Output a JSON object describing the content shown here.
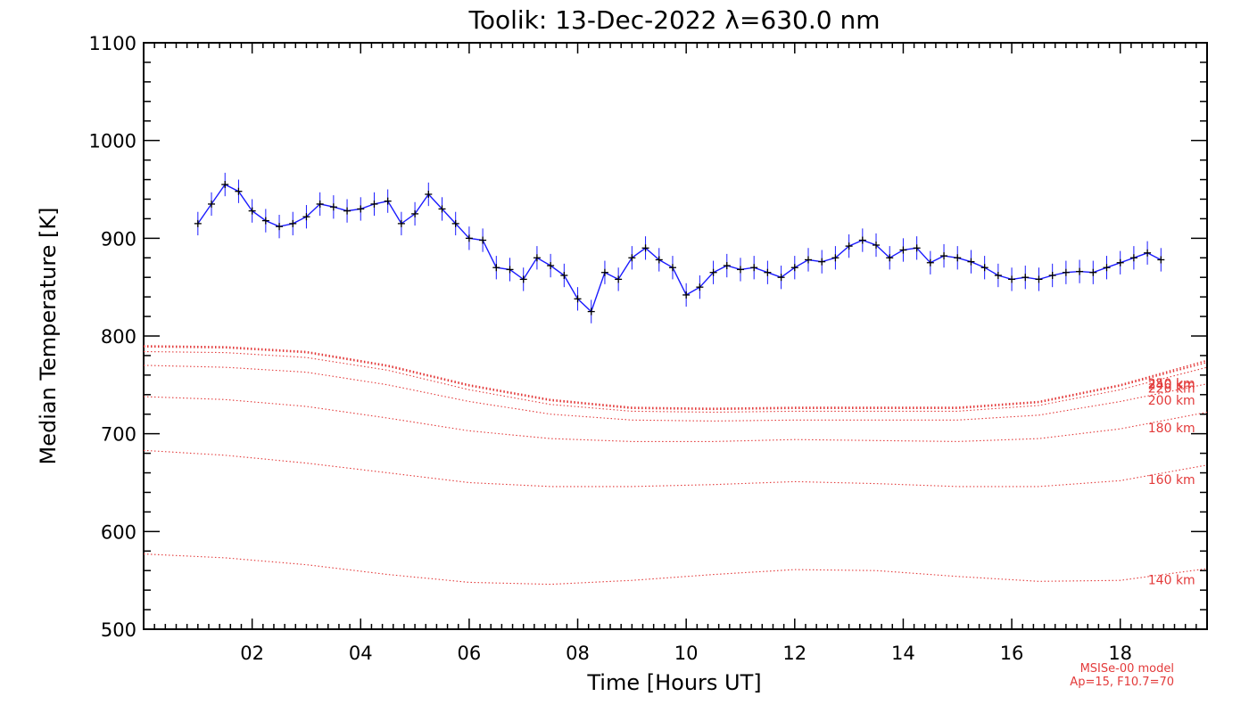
{
  "chart_data": {
    "type": "line",
    "title": "Toolik: 13-Dec-2022 λ=630.0 nm",
    "xlabel": "Time [Hours UT]",
    "ylabel": "Median Temperature [K]",
    "xlim": [
      0.0,
      19.6
    ],
    "ylim": [
      500,
      1100
    ],
    "xticks": [
      2,
      4,
      6,
      8,
      10,
      12,
      14,
      16,
      18
    ],
    "xtick_labels": [
      "02",
      "04",
      "06",
      "08",
      "10",
      "12",
      "14",
      "16",
      "18"
    ],
    "yticks": [
      500,
      600,
      700,
      800,
      900,
      1000,
      1100
    ],
    "ytick_labels": [
      "500",
      "600",
      "700",
      "800",
      "900",
      "1000",
      "1100"
    ],
    "measured": {
      "color": "#1a1aff",
      "marker_color": "#000000",
      "error_bar_K": 12,
      "x": [
        1.0,
        1.25,
        1.5,
        1.75,
        2.0,
        2.25,
        2.5,
        2.75,
        3.0,
        3.25,
        3.5,
        3.75,
        4.0,
        4.25,
        4.5,
        4.75,
        5.0,
        5.25,
        5.5,
        5.75,
        6.0,
        6.25,
        6.5,
        6.75,
        7.0,
        7.25,
        7.5,
        7.75,
        8.0,
        8.25,
        8.5,
        8.75,
        9.0,
        9.25,
        9.5,
        9.75,
        10.0,
        10.25,
        10.5,
        10.75,
        11.0,
        11.25,
        11.5,
        11.75,
        12.0,
        12.25,
        12.5,
        12.75,
        13.0,
        13.25,
        13.5,
        13.75,
        14.0,
        14.25,
        14.5,
        14.75,
        15.0,
        15.25,
        15.5,
        15.75,
        16.0,
        16.25,
        16.5,
        16.75,
        17.0,
        17.25,
        17.5,
        17.75,
        18.0,
        18.25,
        18.5,
        18.75
      ],
      "y": [
        915,
        935,
        955,
        948,
        928,
        918,
        912,
        915,
        922,
        935,
        932,
        928,
        930,
        935,
        938,
        915,
        925,
        945,
        930,
        915,
        900,
        898,
        870,
        868,
        858,
        880,
        872,
        862,
        838,
        825,
        865,
        858,
        880,
        890,
        878,
        870,
        842,
        850,
        865,
        872,
        868,
        870,
        865,
        860,
        870,
        878,
        876,
        880,
        892,
        898,
        893,
        880,
        888,
        890,
        875,
        882,
        880,
        876,
        870,
        862,
        858,
        860,
        858,
        862,
        865,
        866,
        865,
        870,
        875,
        880,
        885,
        878
      ]
    },
    "model_series": [
      {
        "name": "250 km",
        "label": "250 km",
        "y": [
          790,
          789,
          784,
          770,
          750,
          735,
          727,
          726,
          727,
          727,
          727,
          733,
          750,
          775
        ]
      },
      {
        "name": "240 km",
        "label": "240 km",
        "y": [
          789,
          788,
          783,
          769,
          749,
          734,
          726,
          725,
          726,
          726,
          726,
          732,
          749,
          773
        ]
      },
      {
        "name": "220 km",
        "label": "220 km",
        "y": [
          784,
          783,
          778,
          765,
          745,
          730,
          723,
          722,
          723,
          723,
          723,
          729,
          745,
          768
        ]
      },
      {
        "name": "200 km",
        "label": "200 km",
        "y": [
          770,
          768,
          763,
          750,
          733,
          720,
          714,
          713,
          714,
          714,
          714,
          719,
          733,
          751
        ]
      },
      {
        "name": "180 km",
        "label": "180 km",
        "y": [
          738,
          735,
          728,
          716,
          703,
          695,
          692,
          692,
          694,
          693,
          692,
          695,
          705,
          722
        ]
      },
      {
        "name": "160 km",
        "label": "160 km",
        "y": [
          683,
          678,
          670,
          660,
          650,
          646,
          646,
          648,
          651,
          649,
          646,
          646,
          652,
          668
        ]
      },
      {
        "name": "140 km",
        "label": "140 km",
        "y": [
          577,
          573,
          566,
          556,
          548,
          546,
          550,
          556,
          561,
          560,
          554,
          549,
          550,
          562
        ]
      }
    ],
    "model_x": [
      0.0,
      1.5,
      3.0,
      4.5,
      6.0,
      7.5,
      9.0,
      10.5,
      12.0,
      13.5,
      15.0,
      16.5,
      18.0,
      19.6
    ],
    "model_color": "#e33a3a",
    "annotation_lines": [
      "MSISe-00 model",
      "Ap=15, F10.7=70"
    ]
  }
}
